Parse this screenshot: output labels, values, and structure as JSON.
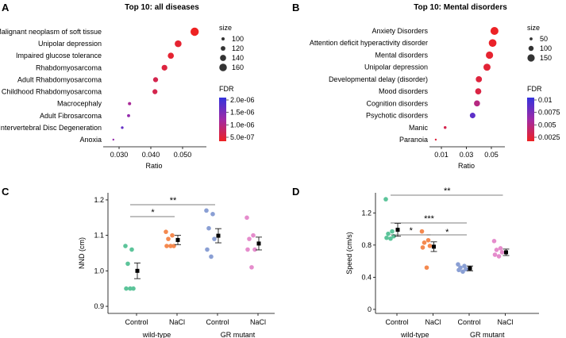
{
  "chart_data": [
    {
      "panel": "A",
      "type": "scatter",
      "title": "Top 10: all diseases",
      "xlabel": "Ratio",
      "x_ticks": [
        0.03,
        0.04,
        0.05
      ],
      "x_tick_labels": [
        "0.030",
        "0.040",
        "0.050"
      ],
      "xlim": [
        0.026,
        0.056
      ],
      "categories": [
        "Malignant neoplasm of soft tissue",
        "Unipolar depression",
        "Impaired glucose tolerance",
        "Rhabdomyosarcoma",
        "Adult Rhabdomyosarcoma",
        "Childhood Rhabdomyosarcoma",
        "Macrocephaly",
        "Adult Fibrosarcoma",
        "Intervertebral Disc Degeneration",
        "Anoxia"
      ],
      "points": [
        {
          "ratio": 0.0538,
          "size": 170,
          "fdr": 2e-07
        },
        {
          "ratio": 0.0486,
          "size": 150,
          "fdr": 3e-07
        },
        {
          "ratio": 0.0463,
          "size": 140,
          "fdr": 3e-07
        },
        {
          "ratio": 0.0443,
          "size": 135,
          "fdr": 4e-07
        },
        {
          "ratio": 0.0415,
          "size": 125,
          "fdr": 5e-07
        },
        {
          "ratio": 0.0413,
          "size": 125,
          "fdr": 5e-07
        },
        {
          "ratio": 0.0333,
          "size": 100,
          "fdr": 1e-06
        },
        {
          "ratio": 0.033,
          "size": 98,
          "fdr": 1.2e-06
        },
        {
          "ratio": 0.031,
          "size": 92,
          "fdr": 1.6e-06
        },
        {
          "ratio": 0.0282,
          "size": 82,
          "fdr": 1.2e-06
        }
      ],
      "size_legend": {
        "title": "size",
        "values": [
          100,
          120,
          140,
          160
        ]
      },
      "color_legend": {
        "title": "FDR",
        "labels": [
          "2.0e-06",
          "1.5e-06",
          "1.0e-06",
          "5.0e-07"
        ],
        "low_color": "#ee2222",
        "high_color": "#3333dd"
      }
    },
    {
      "panel": "B",
      "type": "scatter",
      "title": "Top 10: Mental disorders",
      "xlabel": "Ratio",
      "x_ticks": [
        0.01,
        0.03,
        0.05
      ],
      "x_tick_labels": [
        "0.01",
        "0.03",
        "0.05"
      ],
      "xlim": [
        0.003,
        0.057
      ],
      "categories": [
        "Anxiety Disorders",
        "Attention deficit hyperactivity disorder",
        "Mental disorders",
        "Unipolar depression",
        "Developmental delay (disorder)",
        "Mood disorders",
        "Cognition disorders",
        "Psychotic disorders",
        "Manic",
        "Paranoia"
      ],
      "points": [
        {
          "ratio": 0.0525,
          "size": 165,
          "fdr": 0.0003
        },
        {
          "ratio": 0.051,
          "size": 160,
          "fdr": 0.0004
        },
        {
          "ratio": 0.0485,
          "size": 150,
          "fdr": 0.0006
        },
        {
          "ratio": 0.0465,
          "size": 145,
          "fdr": 0.0008
        },
        {
          "ratio": 0.04,
          "size": 125,
          "fdr": 0.001
        },
        {
          "ratio": 0.0395,
          "size": 123,
          "fdr": 0.0012
        },
        {
          "ratio": 0.0385,
          "size": 120,
          "fdr": 0.003
        },
        {
          "ratio": 0.035,
          "size": 110,
          "fdr": 0.0065
        },
        {
          "ratio": 0.013,
          "size": 45,
          "fdr": 0.0015
        },
        {
          "ratio": 0.0055,
          "size": 25,
          "fdr": 0.001
        }
      ],
      "size_legend": {
        "title": "size",
        "values": [
          50,
          100,
          150
        ]
      },
      "color_legend": {
        "title": "FDR",
        "labels": [
          "0.01",
          "0.0075",
          "0.005",
          "0.0025"
        ],
        "low_color": "#ee2222",
        "high_color": "#3333dd"
      }
    },
    {
      "panel": "C",
      "type": "scatter",
      "ylabel": "NND (cm)",
      "ylim": [
        0.88,
        1.22
      ],
      "y_ticks": [
        0.9,
        1.0,
        1.1,
        1.2
      ],
      "y_tick_labels": [
        "0.9",
        "1.0",
        "1.1",
        "1.2"
      ],
      "groups": [
        {
          "label": "Control",
          "color": "#5cc49a",
          "mean": 1.0,
          "sem": 0.022,
          "points": [
            1.07,
            1.06,
            1.02,
            0.95,
            0.95,
            0.95
          ]
        },
        {
          "label": "NaCl",
          "color": "#f4894f",
          "mean": 1.087,
          "sem": 0.013,
          "points": [
            1.11,
            1.1,
            1.09,
            1.07,
            1.07,
            1.07
          ]
        },
        {
          "label": "Control",
          "color": "#8a9fd4",
          "mean": 1.099,
          "sem": 0.02,
          "points": [
            1.17,
            1.16,
            1.12,
            1.09,
            1.06,
            1.04
          ]
        },
        {
          "label": "NaCl",
          "color": "#e58ccc",
          "mean": 1.077,
          "sem": 0.018,
          "points": [
            1.15,
            1.1,
            1.09,
            1.06,
            1.06,
            1.01
          ]
        }
      ],
      "group_labels": [
        "wild-type",
        "GR mutant"
      ],
      "significance": [
        {
          "from": 0,
          "to": 1,
          "label": "*"
        },
        {
          "from": 0,
          "to": 2,
          "label": "**"
        }
      ]
    },
    {
      "panel": "D",
      "type": "scatter",
      "ylabel": "Speed (cm/s)",
      "ylim": [
        -0.05,
        1.45
      ],
      "y_ticks": [
        0,
        0.4,
        0.8,
        1.2
      ],
      "y_tick_labels": [
        "0",
        "0.4",
        "0.8",
        "1.2"
      ],
      "groups": [
        {
          "label": "Control",
          "color": "#5cc49a",
          "mean": 0.99,
          "sem": 0.08,
          "points": [
            1.37,
            0.97,
            0.94,
            0.91,
            0.89,
            0.88
          ]
        },
        {
          "label": "NaCl",
          "color": "#f4894f",
          "mean": 0.78,
          "sem": 0.06,
          "points": [
            0.97,
            0.86,
            0.83,
            0.79,
            0.77,
            0.52
          ]
        },
        {
          "label": "Control",
          "color": "#8a9fd4",
          "mean": 0.51,
          "sem": 0.03,
          "points": [
            0.56,
            0.54,
            0.52,
            0.5,
            0.49,
            0.47
          ]
        },
        {
          "label": "NaCl",
          "color": "#e58ccc",
          "mean": 0.71,
          "sem": 0.04,
          "points": [
            0.85,
            0.76,
            0.74,
            0.71,
            0.68,
            0.66
          ]
        }
      ],
      "group_labels": [
        "wild-type",
        "GR mutant"
      ],
      "significance": [
        {
          "from": 0,
          "to": 1,
          "label": "*"
        },
        {
          "from": 1,
          "to": 2,
          "label": "*"
        },
        {
          "from": 0,
          "to": 2,
          "label": "***"
        },
        {
          "from": 0,
          "to": 3,
          "label": "**"
        }
      ]
    }
  ]
}
